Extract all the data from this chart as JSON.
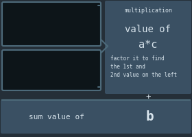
{
  "bg_color": "#252f38",
  "box_color": "#0d1519",
  "box_border_color": "#4d6a7a",
  "right_panel_color": "#3a5063",
  "bottom_bar_color": "#3a5063",
  "text_color": "#d8e4ec",
  "title_text": "multiplication",
  "main_text_line1": "value of",
  "main_text_line2": "a*c",
  "sub_text_line1": "factor it to find",
  "sub_text_line2": "the 1st and",
  "sub_text_line3": "2nd value on the left",
  "plus_text": "+",
  "bottom_text_normal": "sum value of",
  "bottom_text_bold": "b",
  "figw": 2.8,
  "figh": 2.0,
  "dpi": 100
}
